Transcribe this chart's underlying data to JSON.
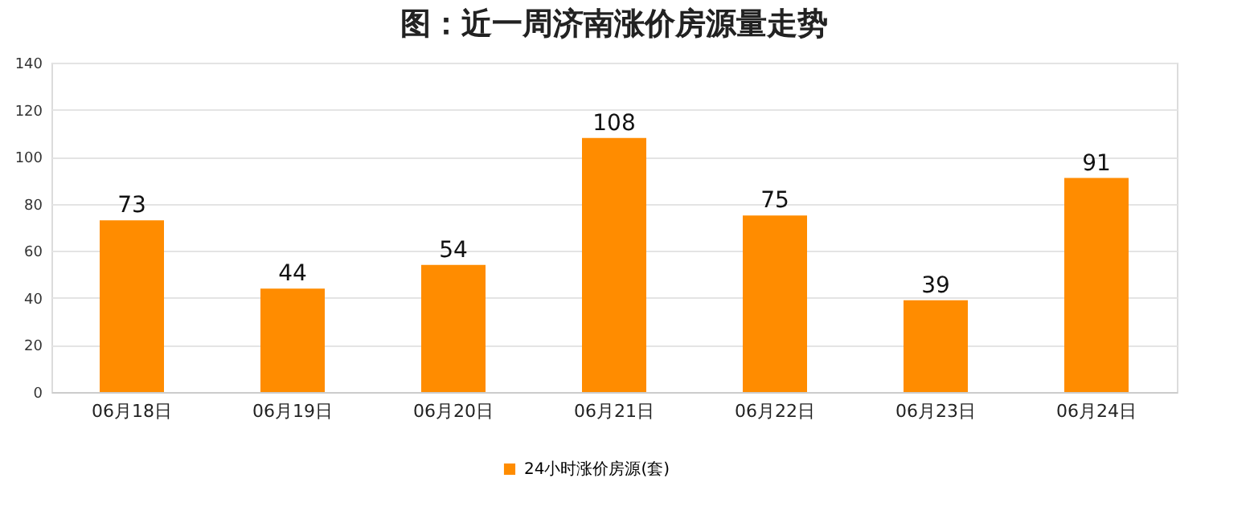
{
  "chart_data": {
    "type": "bar",
    "title": "图：近一周济南涨价房源量走势",
    "categories": [
      "06月18日",
      "06月19日",
      "06月20日",
      "06月21日",
      "06月22日",
      "06月23日",
      "06月24日"
    ],
    "series": [
      {
        "name": "24小时涨价房源(套)",
        "color": "#ff8c00",
        "values": [
          73,
          44,
          54,
          108,
          75,
          39,
          91
        ]
      }
    ],
    "ylim": [
      0,
      140
    ],
    "yticks": [
      0,
      20,
      40,
      60,
      80,
      100,
      120,
      140
    ],
    "grid": "y",
    "legend": "bottom",
    "data_labels": true
  }
}
